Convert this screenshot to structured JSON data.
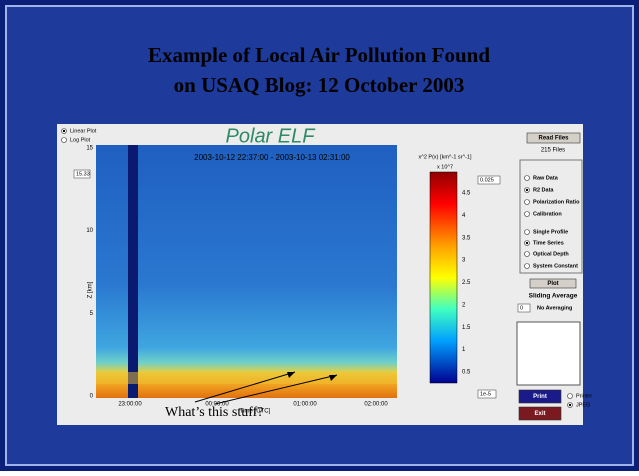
{
  "slide": {
    "title_lines": [
      "Example of Local Air Pollution Found",
      "on USAQ Blog: 12 October 2003"
    ]
  },
  "screenshot": {
    "plot_modes": [
      "Linear Plot",
      "Log Plot"
    ],
    "app_title": "Polar ELF",
    "time_range": "2003-10-12 22:37:00  -  2003-10-13 02:31:00",
    "altitude_box": "15.33",
    "y_axis_label": "Z [km]",
    "y_ticks": [
      "15",
      "10",
      "5",
      "0"
    ],
    "x_ticks": [
      "23:00:00",
      "00:00:00",
      "01:00:00",
      "02:00:00"
    ],
    "x_axis_label": "Time [UTC]",
    "colorbar_label": "x^2 P(x) [km^-1 sr^-1]",
    "colorbar_scale": "x 10^7",
    "colorbar_ticks": [
      "4.5",
      "4",
      "3.5",
      "3",
      "2.5",
      "2",
      "1.5",
      "1",
      "0.5"
    ],
    "colorbar_max_box": "0.025",
    "colorbar_min_box": "1e-5",
    "read_files_button": "Read Files",
    "file_count": "215 Files",
    "data_options": [
      "Raw Data",
      "R2 Data",
      "Polarization Ratio",
      "Calibration"
    ],
    "view_options": [
      "Single Profile",
      "Time Series",
      "Optical Depth"
    ],
    "system_constant": "System Constant",
    "plot_button": "Plot",
    "sliding_average": "Sliding Average",
    "average_box": "0",
    "no_averaging": "No Averaging",
    "print_button": "Print",
    "exit_button": "Exit",
    "output_options": [
      "Printer",
      "JPEG"
    ]
  },
  "annotation": "What’s this stuff?"
}
